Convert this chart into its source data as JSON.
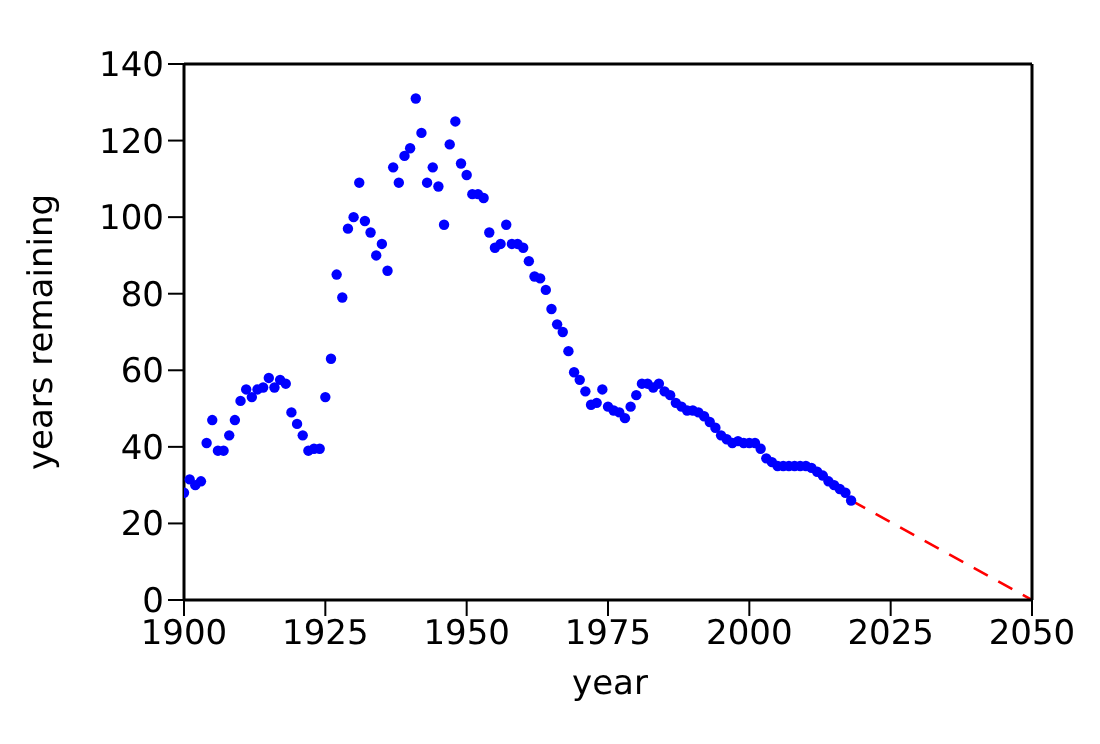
{
  "chart_data": {
    "type": "scatter",
    "xlabel": "year",
    "ylabel": "years remaining",
    "xlim": [
      1900,
      2050
    ],
    "xticks": [
      1900,
      1925,
      1950,
      1975,
      2000,
      2025,
      2050
    ],
    "ylim": [
      0,
      140
    ],
    "yticks": [
      0,
      20,
      40,
      60,
      80,
      100,
      120,
      140
    ],
    "marker": "circle",
    "series": [
      {
        "color": "#0000ff",
        "x": [
          1900,
          1901,
          1902,
          1903,
          1904,
          1905,
          1906,
          1907,
          1908,
          1909,
          1910,
          1911,
          1912,
          1913,
          1914,
          1915,
          1916,
          1917,
          1918,
          1919,
          1920,
          1921,
          1922,
          1923,
          1924,
          1925,
          1926,
          1927,
          1928,
          1929,
          1930,
          1931,
          1932,
          1933,
          1934,
          1935,
          1936,
          1937,
          1938,
          1939,
          1940,
          1941,
          1942,
          1943,
          1944,
          1945,
          1946,
          1947,
          1948,
          1949,
          1950,
          1951,
          1952,
          1953,
          1954,
          1955,
          1956,
          1957,
          1958,
          1959,
          1960,
          1961,
          1962,
          1963,
          1964,
          1965,
          1966,
          1967,
          1968,
          1969,
          1970,
          1971,
          1972,
          1973,
          1974,
          1975,
          1976,
          1977,
          1978,
          1979,
          1980,
          1981,
          1982,
          1983,
          1984,
          1985,
          1986,
          1987,
          1988,
          1989,
          1990,
          1991,
          1992,
          1993,
          1994,
          1995,
          1996,
          1997,
          1998,
          1999,
          2000,
          2001,
          2002,
          2003,
          2004,
          2005,
          2006,
          2007,
          2008,
          2009,
          2010,
          2011,
          2012,
          2013,
          2014,
          2015,
          2016,
          2017,
          2018
        ],
        "values": [
          28,
          31.5,
          30,
          31,
          41,
          47,
          39,
          39,
          43,
          47,
          52,
          55,
          53,
          55,
          55.5,
          58,
          55.5,
          57.5,
          56.5,
          49,
          46,
          43,
          39,
          39.5,
          39.5,
          53,
          63,
          85,
          79,
          97,
          100,
          109,
          99,
          96,
          90,
          93,
          86,
          113,
          109,
          116,
          118,
          131,
          122,
          109,
          113,
          108,
          98,
          119,
          125,
          114,
          111,
          106,
          106,
          105,
          96,
          92,
          93,
          98,
          93,
          93,
          92,
          88.5,
          84.5,
          84,
          81,
          76,
          72,
          70,
          65,
          59.5,
          57.5,
          54.5,
          51,
          51.5,
          55,
          50.5,
          49.5,
          49,
          47.5,
          50.5,
          53.5,
          56.5,
          56.5,
          55.5,
          56.5,
          54.5,
          53.5,
          51.5,
          50.5,
          49.5,
          49.5,
          49,
          48,
          46.5,
          45,
          43,
          42,
          41,
          41.5,
          41,
          41,
          41,
          39.5,
          37,
          36,
          35,
          35,
          35,
          35,
          35,
          35,
          34.5,
          33.5,
          32.5,
          31,
          30,
          29,
          28,
          26
        ]
      },
      {
        "type": "line",
        "color": "#ff0000",
        "line_style": "dashed",
        "marker": "none",
        "x": [
          2018,
          2050
        ],
        "values": [
          26,
          0
        ]
      }
    ]
  }
}
